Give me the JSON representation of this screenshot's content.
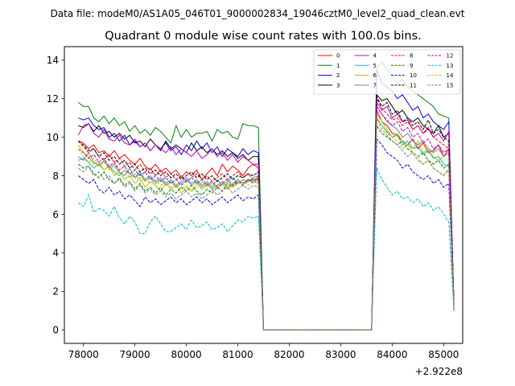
{
  "suptitle": "Data file: modeM0/AS1A05_046T01_9000002834_19046cztM0_level2_quad_clean.evt",
  "chart_data": {
    "type": "line",
    "title": "Quadrant 0 module wise count rates with 100.0s bins.",
    "xlabel": "",
    "ylabel": "",
    "x_offset_label": "+2.922e8",
    "xlim": [
      77630,
      85370
    ],
    "ylim": [
      -0.7,
      14.7
    ],
    "x_ticks": [
      78000,
      79000,
      80000,
      81000,
      82000,
      83000,
      84000,
      85000
    ],
    "x_tick_labels": [
      "78000",
      "79000",
      "80000",
      "81000",
      "82000",
      "83000",
      "84000",
      "85000"
    ],
    "y_ticks": [
      0,
      2,
      4,
      6,
      8,
      10,
      12,
      14
    ],
    "y_tick_labels": [
      "0",
      "2",
      "4",
      "6",
      "8",
      "10",
      "12",
      "14"
    ],
    "grid": false,
    "legend_position": "top-right",
    "legend_columns": 4,
    "x_start": 77900,
    "x_step": 100,
    "gap_start_index": 36,
    "gap_end_index": 57,
    "segment2_start_index": 58,
    "series": [
      {
        "name": "0",
        "color": "#ff0000",
        "dash": "solid",
        "seg1": [
          9.8,
          9.7,
          9.4,
          9.6,
          9.2,
          9.3,
          9.0,
          9.3,
          8.9,
          9.1,
          8.8,
          8.6,
          8.9,
          8.5,
          8.3,
          8.6,
          8.2,
          8.4,
          8.1,
          8.3,
          7.9,
          8.2,
          8.0,
          8.3,
          7.8,
          8.1,
          8.4,
          8.0,
          8.6,
          8.2,
          8.5,
          8.3,
          8.0,
          8.4,
          8.6,
          8.4
        ],
        "seg2": [
          11.4,
          10.8,
          10.6,
          10.2,
          10.1,
          9.8,
          9.6,
          9.9,
          9.4,
          9.7,
          9.2,
          9.3,
          9.6,
          9.0,
          9.4,
          1.5
        ]
      },
      {
        "name": "1",
        "color": "#008000",
        "dash": "solid",
        "seg1": [
          11.8,
          11.6,
          11.6,
          11.0,
          10.8,
          11.1,
          10.7,
          11.0,
          10.6,
          10.8,
          10.3,
          10.6,
          10.2,
          10.4,
          10.1,
          10.5,
          10.3,
          10.0,
          9.7,
          10.6,
          10.0,
          10.4,
          10.0,
          10.2,
          10.2,
          10.3,
          9.8,
          10.4,
          10.2,
          10.3,
          10.0,
          9.9,
          10.7,
          10.6,
          10.6,
          10.5
        ],
        "seg2": [
          13.6,
          13.9,
          13.5,
          13.2,
          12.8,
          13.0,
          12.6,
          12.4,
          12.2,
          12.0,
          11.8,
          11.6,
          11.2,
          11.1,
          11.0,
          1.2
        ]
      },
      {
        "name": "2",
        "color": "#0000ff",
        "dash": "solid",
        "seg1": [
          11.0,
          10.9,
          11.0,
          10.6,
          10.4,
          10.5,
          10.0,
          10.2,
          9.8,
          10.1,
          9.6,
          9.8,
          9.5,
          9.7,
          9.3,
          9.6,
          9.4,
          9.7,
          9.3,
          9.5,
          9.1,
          9.6,
          9.3,
          9.8,
          9.4,
          9.7,
          9.2,
          9.5,
          9.0,
          9.4,
          9.2,
          9.0,
          9.4,
          9.1,
          9.3,
          9.2
        ],
        "seg2": [
          13.5,
          12.8,
          12.6,
          12.4,
          12.0,
          12.2,
          11.8,
          11.4,
          11.6,
          11.0,
          11.2,
          10.8,
          10.6,
          10.4,
          10.8,
          1.2
        ]
      },
      {
        "name": "3",
        "color": "#000000",
        "dash": "solid",
        "seg1": [
          10.6,
          10.5,
          10.7,
          10.3,
          10.6,
          10.2,
          10.3,
          10.0,
          10.2,
          9.9,
          10.1,
          9.7,
          9.8,
          9.5,
          9.9,
          9.6,
          9.3,
          9.8,
          9.4,
          9.6,
          9.4,
          9.2,
          9.7,
          9.3,
          9.5,
          9.2,
          9.4,
          9.1,
          9.3,
          9.0,
          9.2,
          8.9,
          9.1,
          8.8,
          9.0,
          9.0
        ],
        "seg2": [
          12.2,
          11.9,
          12.0,
          11.6,
          11.2,
          11.4,
          11.0,
          10.8,
          11.0,
          10.6,
          10.4,
          10.2,
          10.6,
          10.0,
          10.2,
          1.4
        ]
      },
      {
        "name": "4",
        "color": "#bf00bf",
        "dash": "solid",
        "seg1": [
          10.1,
          10.6,
          10.7,
          10.2,
          10.0,
          10.4,
          9.9,
          9.8,
          10.1,
          9.7,
          9.6,
          9.9,
          9.5,
          9.7,
          9.3,
          9.6,
          9.4,
          9.2,
          9.5,
          9.1,
          9.4,
          9.2,
          9.0,
          9.3,
          8.9,
          9.1,
          9.4,
          9.0,
          9.2,
          8.8,
          9.1,
          8.7,
          9.0,
          8.8,
          8.6,
          8.6
        ],
        "seg2": [
          11.8,
          11.4,
          11.6,
          11.0,
          11.2,
          10.8,
          10.9,
          10.4,
          10.6,
          10.2,
          10.5,
          10.0,
          10.2,
          9.8,
          10.3,
          1.3
        ]
      },
      {
        "name": "5",
        "color": "#00bfbf",
        "dash": "solid",
        "seg1": [
          8.8,
          8.9,
          8.7,
          8.4,
          8.6,
          8.3,
          8.5,
          8.2,
          8.0,
          8.3,
          8.1,
          7.9,
          8.2,
          7.8,
          8.0,
          7.7,
          7.9,
          7.6,
          7.8,
          7.5,
          7.7,
          7.9,
          7.6,
          7.8,
          7.5,
          7.7,
          7.4,
          7.8,
          7.5,
          7.7,
          7.9,
          7.6,
          7.8,
          7.7,
          7.9,
          8.0
        ],
        "seg2": [
          11.0,
          10.6,
          10.3,
          10.0,
          10.1,
          9.6,
          9.8,
          9.4,
          9.5,
          9.1,
          9.3,
          8.9,
          9.0,
          8.6,
          8.5,
          1.0
        ]
      },
      {
        "name": "6",
        "color": "#bfbf00",
        "dash": "solid",
        "seg1": [
          9.6,
          9.2,
          9.0,
          8.6,
          8.7,
          8.3,
          8.5,
          8.0,
          8.2,
          7.8,
          8.0,
          7.6,
          7.9,
          7.4,
          7.7,
          7.5,
          7.2,
          7.6,
          7.3,
          7.5,
          7.1,
          7.4,
          7.2,
          7.6,
          7.3,
          7.5,
          7.7,
          7.4,
          7.6,
          7.3,
          7.5,
          7.8,
          7.6,
          7.8,
          7.7,
          8.0
        ],
        "seg2": [
          11.2,
          10.8,
          10.4,
          10.0,
          10.2,
          9.8,
          9.6,
          9.4,
          9.8,
          9.2,
          9.4,
          9.0,
          8.8,
          9.0,
          9.2,
          1.2
        ]
      },
      {
        "name": "7",
        "color": "#808080",
        "dash": "solid",
        "seg1": [
          9.0,
          8.8,
          9.2,
          8.7,
          8.5,
          8.8,
          8.4,
          8.6,
          8.2,
          8.0,
          8.4,
          7.9,
          8.1,
          7.7,
          7.9,
          7.6,
          7.8,
          7.5,
          7.7,
          7.4,
          7.6,
          7.8,
          7.5,
          7.7,
          7.4,
          7.6,
          7.3,
          7.5,
          7.7,
          7.4,
          7.6,
          7.8,
          7.6,
          7.7,
          7.8,
          7.8
        ],
        "seg2": [
          11.6,
          11.2,
          10.8,
          10.6,
          10.4,
          10.0,
          10.2,
          9.8,
          9.6,
          9.8,
          9.4,
          9.2,
          9.4,
          9.0,
          9.2,
          1.0
        ]
      },
      {
        "name": "8",
        "color": "#ff0000",
        "dash": "dashed",
        "seg1": [
          9.8,
          9.5,
          9.2,
          9.4,
          9.0,
          8.8,
          9.1,
          8.7,
          8.9,
          8.5,
          8.7,
          8.3,
          8.6,
          8.2,
          8.4,
          8.0,
          8.3,
          7.9,
          8.1,
          7.8,
          8.0,
          7.7,
          7.9,
          8.1,
          7.8,
          8.0,
          7.7,
          7.9,
          8.1,
          7.8,
          8.0,
          8.2,
          7.9,
          8.1,
          7.8,
          7.8
        ],
        "seg2": [
          12.0,
          11.5,
          11.2,
          10.9,
          11.0,
          10.6,
          10.8,
          10.4,
          10.6,
          10.2,
          10.4,
          10.0,
          9.8,
          9.6,
          9.4,
          1.2
        ]
      },
      {
        "name": "9",
        "color": "#008000",
        "dash": "dashed",
        "seg1": [
          8.6,
          8.4,
          8.5,
          8.1,
          7.9,
          8.2,
          7.8,
          7.6,
          7.9,
          7.5,
          7.7,
          7.3,
          7.6,
          7.2,
          7.4,
          7.1,
          7.4,
          7.0,
          7.3,
          7.1,
          7.4,
          7.2,
          7.5,
          7.2,
          7.0,
          7.3,
          7.1,
          7.4,
          7.2,
          7.6,
          7.4,
          7.7,
          7.5,
          7.8,
          7.6,
          7.8
        ],
        "seg2": [
          10.6,
          10.2,
          10.0,
          9.8,
          9.6,
          9.8,
          9.4,
          9.2,
          9.0,
          9.2,
          8.8,
          8.6,
          8.8,
          8.4,
          8.6,
          1.1
        ]
      },
      {
        "name": "10",
        "color": "#0000ff",
        "dash": "dashed",
        "seg1": [
          8.0,
          7.8,
          7.6,
          7.8,
          7.3,
          7.1,
          7.4,
          7.0,
          7.2,
          6.8,
          7.0,
          6.7,
          6.4,
          6.9,
          6.6,
          6.8,
          6.5,
          6.7,
          6.9,
          6.6,
          6.8,
          6.5,
          6.7,
          6.9,
          6.6,
          6.8,
          6.5,
          6.7,
          6.9,
          6.6,
          6.8,
          7.0,
          6.7,
          6.9,
          6.8,
          7.0
        ],
        "seg2": [
          9.9,
          9.6,
          9.2,
          9.0,
          8.8,
          8.4,
          8.6,
          8.2,
          8.0,
          7.8,
          8.0,
          7.6,
          7.8,
          7.4,
          7.6,
          1.0
        ]
      },
      {
        "name": "11",
        "color": "#000000",
        "dash": "dashed",
        "seg1": [
          9.8,
          9.6,
          9.3,
          9.4,
          9.0,
          9.2,
          8.8,
          9.0,
          8.6,
          8.8,
          8.4,
          8.6,
          8.2,
          8.4,
          8.1,
          8.3,
          8.0,
          8.2,
          7.9,
          8.1,
          7.8,
          8.0,
          8.2,
          7.9,
          8.1,
          7.8,
          8.0,
          7.7,
          7.9,
          8.1,
          7.8,
          8.0,
          7.9,
          8.1,
          8.0,
          8.2
        ],
        "seg2": [
          12.1,
          11.6,
          11.8,
          11.2,
          11.4,
          10.8,
          11.0,
          10.6,
          10.8,
          10.4,
          10.9,
          10.2,
          10.4,
          10.0,
          9.8,
          1.3
        ]
      },
      {
        "name": "12",
        "color": "#bf00bf",
        "dash": "dashed",
        "seg1": [
          9.4,
          9.2,
          8.9,
          9.1,
          8.7,
          8.9,
          8.5,
          8.7,
          8.3,
          8.5,
          8.1,
          8.3,
          8.0,
          8.2,
          7.8,
          8.0,
          7.7,
          7.9,
          7.6,
          7.8,
          7.5,
          7.7,
          7.9,
          7.6,
          7.8,
          7.5,
          7.7,
          7.4,
          7.6,
          7.8,
          7.5,
          7.7,
          7.6,
          7.8,
          7.7,
          7.9
        ],
        "seg2": [
          11.6,
          11.2,
          10.9,
          10.6,
          10.8,
          10.3,
          10.5,
          10.0,
          10.2,
          9.7,
          9.9,
          9.4,
          9.6,
          9.2,
          9.4,
          1.2
        ]
      },
      {
        "name": "13",
        "color": "#00bfbf",
        "dash": "dashed",
        "seg1": [
          6.6,
          6.4,
          7.0,
          6.1,
          6.3,
          6.2,
          5.9,
          6.4,
          5.8,
          5.5,
          5.9,
          5.6,
          5.0,
          5.0,
          5.6,
          5.9,
          5.5,
          5.1,
          5.1,
          5.3,
          5.5,
          5.2,
          5.7,
          5.3,
          5.4,
          5.6,
          5.2,
          5.3,
          5.5,
          5.1,
          5.4,
          5.7,
          5.6,
          5.9,
          5.8,
          5.9
        ],
        "seg2": [
          8.4,
          7.8,
          7.4,
          7.0,
          7.2,
          6.8,
          6.9,
          6.6,
          6.8,
          6.4,
          6.6,
          6.2,
          6.4,
          6.0,
          5.6,
          1.0
        ]
      },
      {
        "name": "14",
        "color": "#bfbf00",
        "dash": "dashed",
        "seg1": [
          9.4,
          9.0,
          8.7,
          8.9,
          8.5,
          8.7,
          8.3,
          8.5,
          8.1,
          8.3,
          7.9,
          8.1,
          7.7,
          7.9,
          7.6,
          7.8,
          7.5,
          7.7,
          7.4,
          7.6,
          7.3,
          7.5,
          7.2,
          7.4,
          7.7,
          7.4,
          7.6,
          7.3,
          7.5,
          7.7,
          7.4,
          7.6,
          7.8,
          7.5,
          7.7,
          7.6
        ],
        "seg2": [
          11.0,
          10.6,
          10.2,
          10.0,
          9.8,
          9.4,
          9.6,
          9.2,
          9.0,
          8.6,
          8.8,
          8.4,
          8.2,
          8.0,
          8.4,
          1.1
        ]
      },
      {
        "name": "15",
        "color": "#808080",
        "dash": "dashed",
        "seg1": [
          8.4,
          8.2,
          8.5,
          8.0,
          8.2,
          7.8,
          8.0,
          7.6,
          7.8,
          7.4,
          7.6,
          7.2,
          7.5,
          7.1,
          7.3,
          7.0,
          7.2,
          6.9,
          7.1,
          6.8,
          7.0,
          7.2,
          6.9,
          7.1,
          6.8,
          7.0,
          7.3,
          7.0,
          7.2,
          7.4,
          7.1,
          7.3,
          7.5,
          7.3,
          7.5,
          7.4
        ],
        "seg2": [
          11.0,
          10.4,
          10.1,
          9.8,
          9.6,
          9.3,
          9.0,
          9.2,
          8.8,
          8.6,
          8.8,
          8.4,
          8.2,
          8.0,
          8.3,
          1.0
        ]
      }
    ]
  }
}
